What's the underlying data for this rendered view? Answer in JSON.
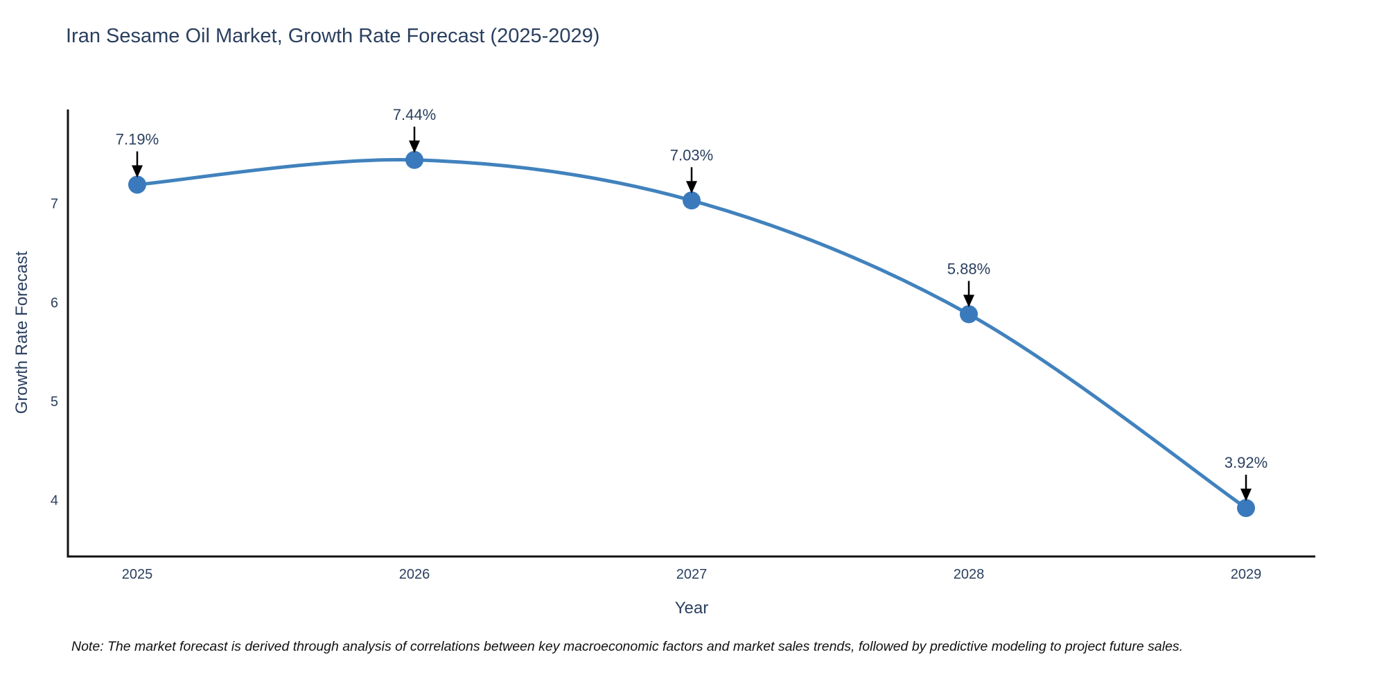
{
  "chart_data": {
    "type": "line",
    "title": "Iran Sesame Oil Market, Growth Rate Forecast (2025-2029)",
    "xlabel": "Year",
    "ylabel": "Growth Rate Forecast",
    "x": [
      2025,
      2026,
      2027,
      2028,
      2029
    ],
    "values": [
      7.19,
      7.44,
      7.03,
      5.88,
      3.92
    ],
    "point_labels": [
      "7.19%",
      "7.44%",
      "7.03%",
      "5.88%",
      "3.92%"
    ],
    "xticks": [
      2025,
      2026,
      2027,
      2028,
      2029
    ],
    "yticks": [
      4,
      5,
      6,
      7
    ],
    "xlim": [
      2024.75,
      2029.25
    ],
    "ylim": [
      3.43,
      7.95
    ],
    "grid": false,
    "legend": "none",
    "line_shape": "spline",
    "colors": {
      "line": "#4182bd",
      "marker": "#3a7abc",
      "axis": "#111111",
      "tick_text": "#2a3f5f",
      "annotation_text": "#2a3f5f",
      "arrow": "#000000"
    }
  },
  "note": "Note: The market forecast is derived through analysis of correlations between key macroeconomic factors and market sales trends, followed by predictive modeling to project future sales."
}
